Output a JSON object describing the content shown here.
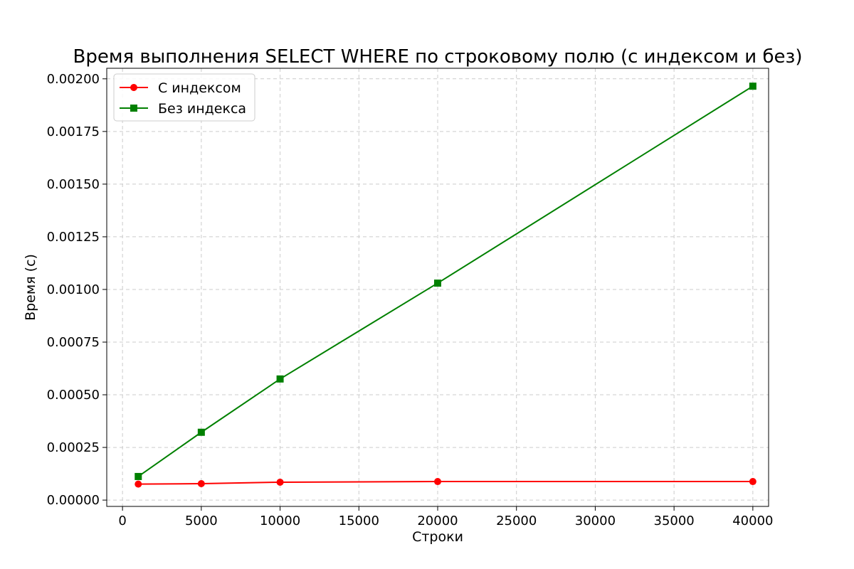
{
  "chart_data": {
    "type": "line",
    "title": "Время выполнения SELECT WHERE по строковому полю (с индексом и без)",
    "xlabel": "Строки",
    "ylabel": "Время (с)",
    "xlim": [
      -1000,
      41000
    ],
    "ylim": [
      -3e-05,
      0.00205
    ],
    "xticks": [
      0,
      5000,
      10000,
      15000,
      20000,
      25000,
      30000,
      35000,
      40000
    ],
    "yticks": [
      0.0,
      0.00025,
      0.0005,
      0.00075,
      0.001,
      0.00125,
      0.0015,
      0.00175,
      0.002
    ],
    "xtick_labels": [
      "0",
      "5000",
      "10000",
      "15000",
      "20000",
      "25000",
      "30000",
      "35000",
      "40000"
    ],
    "ytick_labels": [
      "0.00000",
      "0.00025",
      "0.00050",
      "0.00075",
      "0.00100",
      "0.00125",
      "0.00150",
      "0.00175",
      "0.00200"
    ],
    "grid": true,
    "legend_position": "top-left",
    "x": [
      1000,
      5000,
      10000,
      20000,
      40000
    ],
    "series": [
      {
        "name": "С индексом",
        "values": [
          7.6e-05,
          7.8e-05,
          8.5e-05,
          8.8e-05,
          8.8e-05
        ],
        "color": "#ff0000",
        "marker": "circle"
      },
      {
        "name": "Без индекса",
        "values": [
          0.000112,
          0.000322,
          0.000575,
          0.00103,
          0.001965
        ],
        "color": "#008000",
        "marker": "square"
      }
    ]
  }
}
